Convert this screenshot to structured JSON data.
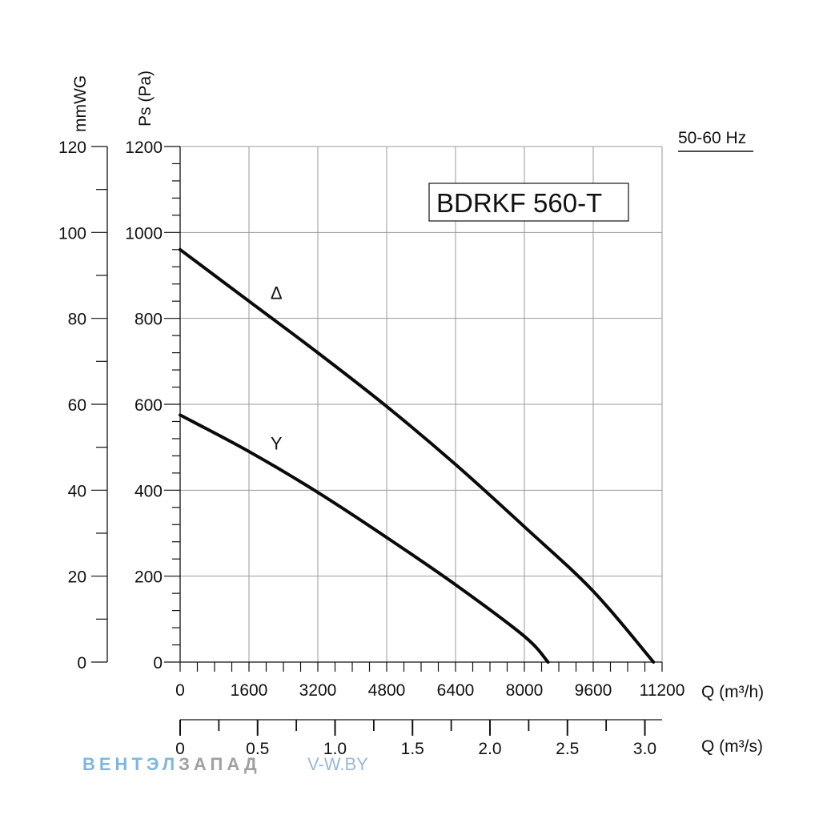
{
  "chart_data": {
    "type": "line",
    "title": "BDRKF 560-T",
    "frequency_label": "50-60 Hz",
    "xlabel": "Q (m³/h)",
    "x2label": "Q (m³/s)",
    "ylabel": "Ps (Pa)",
    "y2label": "mmWG",
    "xlim": [
      0,
      11200
    ],
    "ylim": [
      0,
      1200
    ],
    "y2lim": [
      0,
      120
    ],
    "x2lim": [
      0,
      3.111
    ],
    "x_ticks": [
      0,
      1600,
      3200,
      4800,
      6400,
      8000,
      9600,
      11200
    ],
    "x_tick_labels": [
      "0",
      "1600",
      "3200",
      "4800",
      "6400",
      "8000",
      "9600",
      "11200"
    ],
    "y_ticks": [
      0,
      200,
      400,
      600,
      800,
      1000,
      1200
    ],
    "y_tick_labels": [
      "0",
      "200",
      "400",
      "600",
      "800",
      "1000",
      "1200"
    ],
    "y2_ticks": [
      0,
      20,
      40,
      60,
      80,
      100,
      120
    ],
    "y2_tick_labels": [
      "0",
      "20",
      "40",
      "60",
      "80",
      "100",
      "120"
    ],
    "x2_ticks": [
      0,
      0.5,
      1.0,
      1.5,
      2.0,
      2.5,
      3.0
    ],
    "x2_tick_labels": [
      "0",
      "0.5",
      "1.0",
      "1.5",
      "2.0",
      "2.5",
      "3.0"
    ],
    "grid": true,
    "series": [
      {
        "name": "Δ",
        "x": [
          0,
          1600,
          3200,
          4800,
          6400,
          8000,
          9600,
          11000
        ],
        "y": [
          960,
          840,
          720,
          595,
          460,
          315,
          165,
          0
        ]
      },
      {
        "name": "Y",
        "x": [
          0,
          1600,
          3200,
          4800,
          6400,
          8000,
          8550
        ],
        "y": [
          575,
          490,
          395,
          290,
          180,
          60,
          0
        ]
      }
    ]
  },
  "watermark": {
    "part1": "ВЕНТЭЛ",
    "part2": "ЗАПАД",
    "site": "V-W.BY"
  }
}
